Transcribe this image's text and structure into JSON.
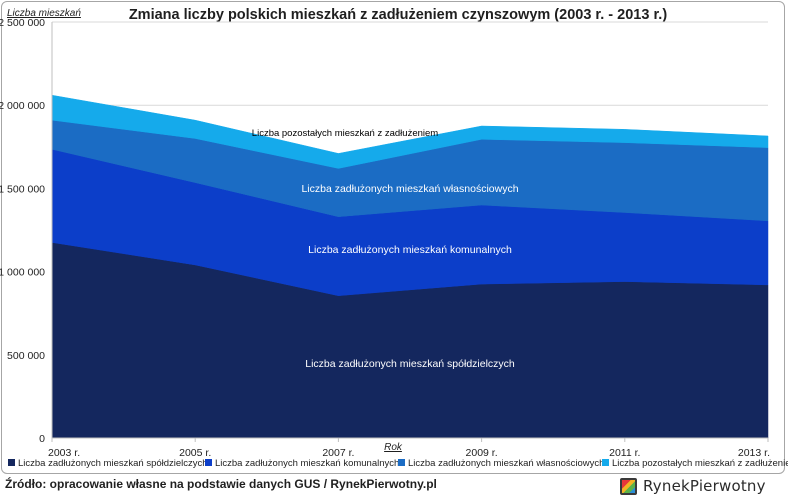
{
  "chart_data": {
    "type": "area",
    "stacked": true,
    "title": "Zmiana liczby polskich mieszkań z zadłużeniem czynszowym (2003 r. - 2013 r.)",
    "ylabel": "Liczba mieszkań",
    "xlabel": "Rok",
    "x": [
      2003,
      2005,
      2007,
      2009,
      2011,
      2013
    ],
    "x_tick_labels": [
      "2003 r.",
      "2005 r.",
      "2007 r.",
      "2009 r.",
      "2011 r.",
      "2013 r."
    ],
    "ylim": [
      0,
      2500000
    ],
    "y_ticks": [
      0,
      500000,
      1000000,
      1500000,
      2000000,
      2500000
    ],
    "y_tick_labels": [
      "0",
      "500 000",
      "1 000 000",
      "1 500 000",
      "2 000 000",
      "2 500 000"
    ],
    "grid": true,
    "legend": "bottom",
    "series": [
      {
        "name": "Liczba zadłużonych mieszkań spółdzielczych",
        "color": "#14275e",
        "values": [
          1175000,
          1040000,
          855000,
          925000,
          940000,
          920000
        ]
      },
      {
        "name": "Liczba zadłużonych mieszkań komunalnych",
        "color": "#0c3ec9",
        "values": [
          560000,
          495000,
          475000,
          475000,
          415000,
          385000
        ]
      },
      {
        "name": "Liczba zadłużonych mieszkań własnościowych",
        "color": "#1b6cc4",
        "values": [
          175000,
          265000,
          290000,
          395000,
          420000,
          440000
        ]
      },
      {
        "name": "Liczba pozostałych mieszkań z zadłużeniem",
        "color": "#15aaeb",
        "values": [
          150000,
          110000,
          90000,
          80000,
          80000,
          70000
        ]
      }
    ],
    "area_labels": [
      "Liczba zadłużonych mieszkań spółdzielczych",
      "Liczba zadłużonych mieszkań komunalnych",
      "Liczba zadłużonych mieszkań własnościowych",
      "Liczba pozostałych mieszkań z zadłużeniem"
    ]
  },
  "source": "Źródło: opracowanie własne na podstawie danych GUS / RynekPierwotny.pl",
  "logo": {
    "text": "RynekPierwotny"
  }
}
